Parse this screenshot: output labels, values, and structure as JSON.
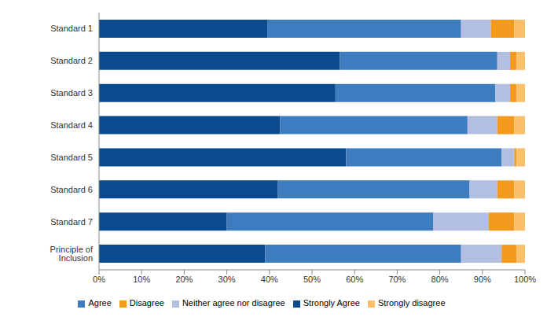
{
  "chart_data": {
    "type": "bar",
    "orientation": "horizontal",
    "stacked": true,
    "grid": false,
    "legend": "bottom",
    "categories": [
      "Standard 1",
      "Standard 2",
      "Standard 3",
      "Standard 4",
      "Standard 5",
      "Standard 6",
      "Standard 7",
      "Principle of Inclusion"
    ],
    "series": [
      {
        "name": "Strongly Agree",
        "color": "#0b4a8e",
        "values": [
          39.5,
          56.5,
          55.5,
          42.5,
          58,
          42,
          30,
          39
        ]
      },
      {
        "name": "Agree",
        "color": "#3d7cbf",
        "values": [
          45.5,
          37,
          37.5,
          44,
          36.5,
          45,
          48.5,
          46
        ]
      },
      {
        "name": "Neither agree nor disagree",
        "color": "#b3bfe0",
        "values": [
          7,
          3,
          3.5,
          7,
          3,
          6.5,
          13,
          9.5
        ]
      },
      {
        "name": "Disagree",
        "color": "#f39a1e",
        "values": [
          5.5,
          1.5,
          1.5,
          4,
          0.5,
          4,
          6,
          3.5
        ]
      },
      {
        "name": "Strongly disagree",
        "color": "#fbbf6a",
        "values": [
          2.5,
          2,
          2,
          2.5,
          2,
          2.5,
          2.5,
          2
        ]
      }
    ],
    "xlim": [
      0,
      100
    ],
    "xticks": [
      {
        "value": 0,
        "label": "0%"
      },
      {
        "value": 10,
        "label": "10%"
      },
      {
        "value": 20,
        "label": "20%"
      },
      {
        "value": 30,
        "label": "30%"
      },
      {
        "value": 40,
        "label": "40%"
      },
      {
        "value": 50,
        "label": "50%"
      },
      {
        "value": 60,
        "label": "60%"
      },
      {
        "value": 70,
        "label": "70%"
      },
      {
        "value": 80,
        "label": "80%"
      },
      {
        "value": 90,
        "label": "90%"
      },
      {
        "value": 100,
        "label": "100%"
      }
    ]
  }
}
